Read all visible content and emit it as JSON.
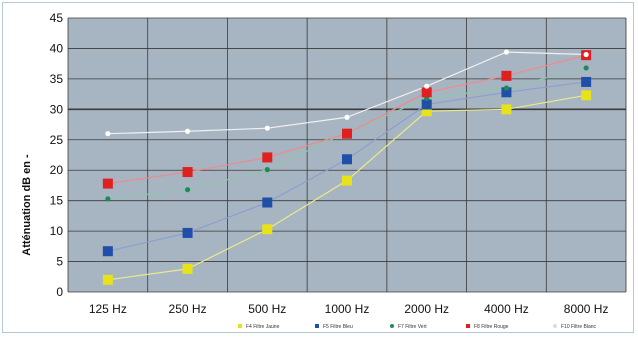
{
  "chart_data": {
    "type": "line",
    "ylabel": "Atténuation dB en -",
    "categories": [
      "125 Hz",
      "250 Hz",
      "500 Hz",
      "1000 Hz",
      "2000 Hz",
      "4000 Hz",
      "8000 Hz"
    ],
    "ylim": [
      0,
      45
    ],
    "yticks": [
      0,
      5,
      10,
      15,
      20,
      25,
      30,
      35,
      40,
      45
    ],
    "grid": true,
    "legend_position": "bottom-right",
    "series": [
      {
        "name": "F4 Filtre Jaune",
        "values": [
          2,
          3.8,
          10.3,
          18.3,
          29.7,
          30,
          32.3
        ],
        "color": "#e8e21a",
        "marker": "square",
        "line_color": "#e9ec8a"
      },
      {
        "name": "F5 Filtre Bleu",
        "values": [
          6.7,
          9.7,
          14.7,
          21.8,
          30.8,
          32.8,
          34.5
        ],
        "color": "#1f4fa8",
        "marker": "square",
        "line_color": "#8a9fd2"
      },
      {
        "name": "F7 Filtre Vert",
        "values": [
          15.3,
          16.8,
          20.1,
          26.2,
          31.8,
          33.5,
          36.8
        ],
        "color": "#1f8a58",
        "marker": "dot",
        "line_color": "#8fc6ad"
      },
      {
        "name": "F8 Filtre Rouge",
        "values": [
          17.8,
          19.7,
          22.1,
          26,
          32.8,
          35.5,
          38.9
        ],
        "color": "#e01f1f",
        "marker": "square",
        "line_color": "#f08a8a"
      },
      {
        "name": "F10 Filtre Blanc",
        "values": [
          26,
          26.4,
          26.9,
          28.7,
          33.8,
          39.4,
          39
        ],
        "color": "#ffffff",
        "marker": "dot",
        "line_color": "#f0f0f0"
      }
    ]
  },
  "colors": {
    "plot_background": "#a7b4c1",
    "grid_line": "#3a3a3a",
    "frame_border": "#b8c7d8"
  }
}
